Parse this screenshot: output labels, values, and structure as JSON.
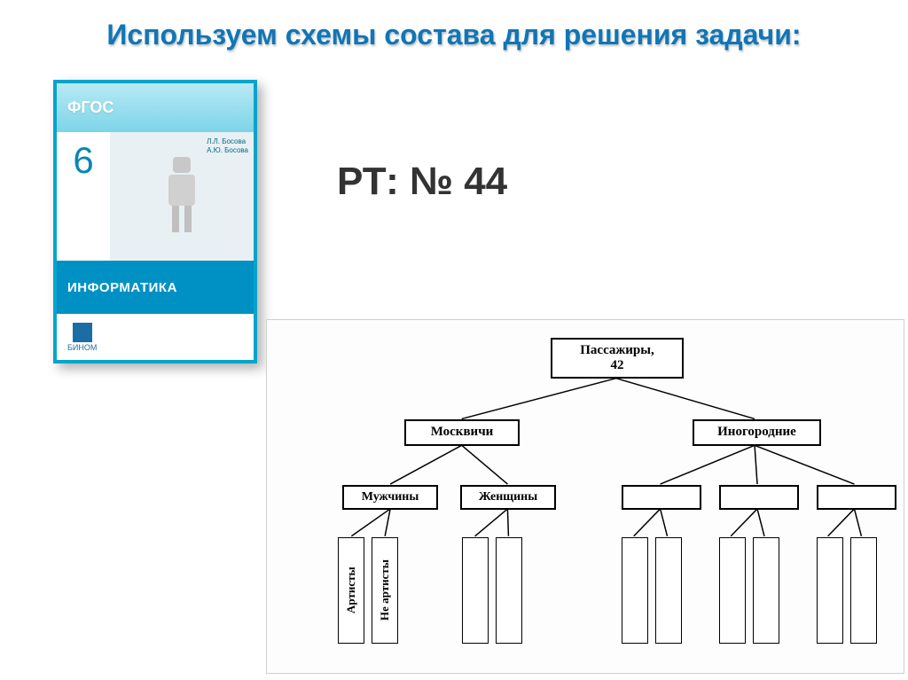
{
  "title": "Используем схемы состава для решения задачи:",
  "subtitle": "РТ:  №  44",
  "book": {
    "standard": "ФГОС",
    "grade": "6",
    "authors_line1": "Л.Л. Босова",
    "authors_line2": "А.Ю. Босова",
    "subject": "ИНФОРМАТИКА",
    "publisher": "БИНОМ"
  },
  "tree": {
    "root": "Пассажиры,\n42",
    "level2": {
      "left": "Москвичи",
      "right": "Иногородние"
    },
    "level3": {
      "m1": "Мужчины",
      "m2": "Женщины",
      "i1": "",
      "i2": "",
      "i3": ""
    },
    "leaves": {
      "l1": "Артисты",
      "l2": "Не артисты",
      "l3": "",
      "l4": "",
      "l5": "",
      "l6": "",
      "l7": "",
      "l8": "",
      "l9": "",
      "l10": ""
    },
    "style": {
      "node_border_color": "#000000",
      "node_bg": "#ffffff",
      "connector_color": "#000000",
      "connector_width": 1.5,
      "font_family": "Times New Roman"
    }
  },
  "colors": {
    "title_color": "#1076b5",
    "book_border": "#00a5cc",
    "book_cyan": "#0091c4",
    "book_light_cyan": "#b8e9f4"
  }
}
